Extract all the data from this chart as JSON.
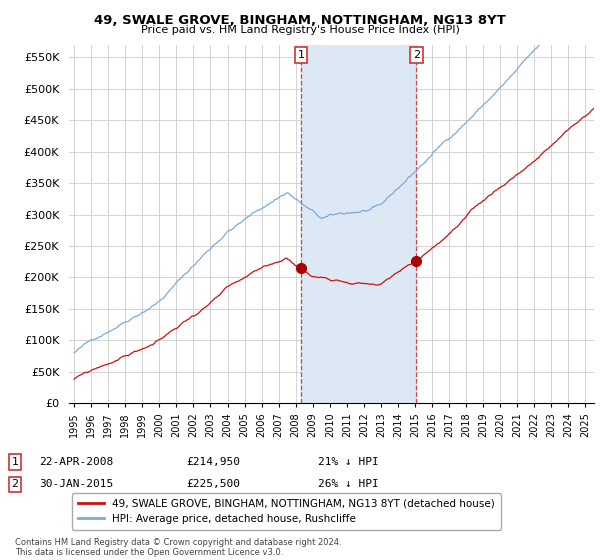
{
  "title": "49, SWALE GROVE, BINGHAM, NOTTINGHAM, NG13 8YT",
  "subtitle": "Price paid vs. HM Land Registry's House Price Index (HPI)",
  "ylabel_ticks": [
    "£0",
    "£50K",
    "£100K",
    "£150K",
    "£200K",
    "£250K",
    "£300K",
    "£350K",
    "£400K",
    "£450K",
    "£500K",
    "£550K"
  ],
  "ytick_values": [
    0,
    50000,
    100000,
    150000,
    200000,
    250000,
    300000,
    350000,
    400000,
    450000,
    500000,
    550000
  ],
  "ylim": [
    0,
    570000
  ],
  "xlim_start": 1994.7,
  "xlim_end": 2025.5,
  "sale1_x": 2008.31,
  "sale1_y": 214950,
  "sale2_x": 2015.08,
  "sale2_y": 225500,
  "legend_line1": "49, SWALE GROVE, BINGHAM, NOTTINGHAM, NG13 8YT (detached house)",
  "legend_line2": "HPI: Average price, detached house, Rushcliffe",
  "annotation1_num": "1",
  "annotation1_date": "22-APR-2008",
  "annotation1_price": "£214,950",
  "annotation1_pct": "21% ↓ HPI",
  "annotation2_num": "2",
  "annotation2_date": "30-JAN-2015",
  "annotation2_price": "£225,500",
  "annotation2_pct": "26% ↓ HPI",
  "footer": "Contains HM Land Registry data © Crown copyright and database right 2024.\nThis data is licensed under the Open Government Licence v3.0.",
  "hpi_color": "#7aabdb",
  "sale_color": "#cc1111",
  "shade_color": "#dde8f5",
  "marker_color": "#aa0000",
  "background_color": "#ffffff",
  "grid_color": "#cccccc"
}
